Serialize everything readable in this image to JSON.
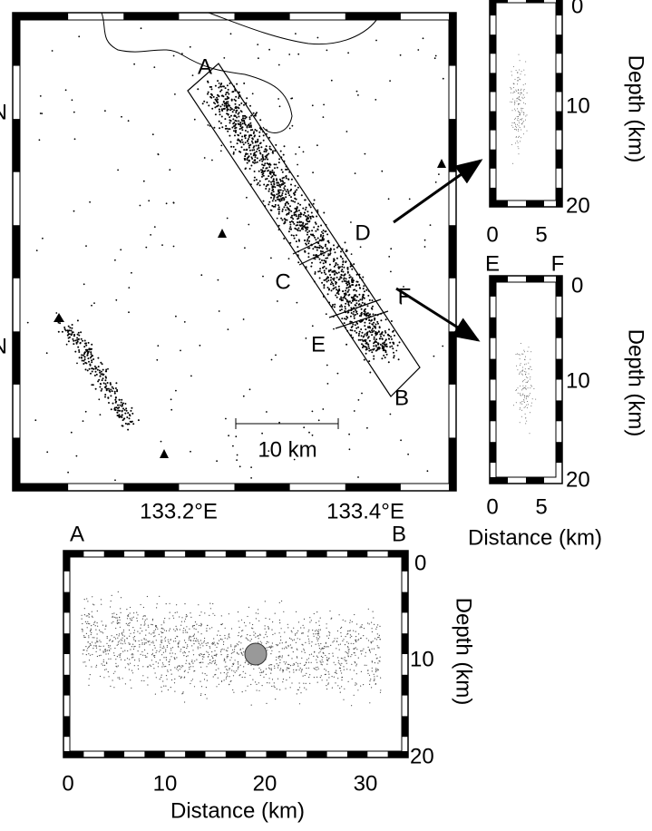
{
  "map": {
    "lat_labels": [
      "N",
      "N"
    ],
    "lon_labels": [
      "133.2°E",
      "133.4°E"
    ],
    "profile_markers": [
      "A",
      "B",
      "C",
      "D",
      "E",
      "F"
    ],
    "scale_bar": "10 km"
  },
  "section_cd": {
    "depth_ticks": [
      0,
      10,
      20
    ],
    "depth_label": "Depth (km)",
    "distance_ticks": [
      0,
      5
    ]
  },
  "section_ef": {
    "end_labels": [
      "E",
      "F"
    ],
    "depth_ticks": [
      0,
      10,
      20
    ],
    "depth_label": "Depth (km)",
    "distance_ticks": [
      0,
      5
    ],
    "distance_label": "Distance (km)"
  },
  "section_ab": {
    "end_labels": [
      "A",
      "B"
    ],
    "depth_ticks": [
      0,
      10,
      20
    ],
    "depth_label": "Depth (km)",
    "distance_ticks": [
      0,
      10,
      20,
      30
    ],
    "distance_label": "Distance (km)"
  }
}
